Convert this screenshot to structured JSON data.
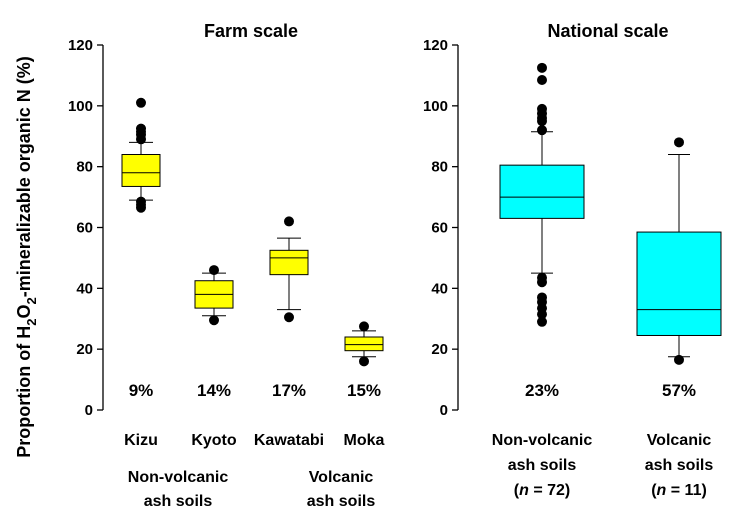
{
  "ylabel_prefix": "Proportion of H",
  "ylabel_sub1": "2",
  "ylabel_mid": "O",
  "ylabel_sub2": "2",
  "ylabel_suffix": "-mineralizable organic N (%)",
  "colors": {
    "farm_box": "#ffff00",
    "national_box": "#00ffff",
    "line": "#000000"
  },
  "chart_data": [
    {
      "type": "box",
      "title": "Farm scale",
      "ylim": [
        0,
        120
      ],
      "yticks": [
        0,
        20,
        40,
        60,
        80,
        100,
        120
      ],
      "categories": [
        "Kizu",
        "Kyoto",
        "Kawatabi",
        "Moka"
      ],
      "group_labels": [
        {
          "line1": "Non-volcanic",
          "line2": "ash soils"
        },
        {
          "line1": "Volcanic",
          "line2": "ash soils"
        }
      ],
      "series": [
        {
          "category": "Kizu",
          "whisker_low": 69,
          "q1": 73.5,
          "median": 78,
          "q3": 84,
          "whisker_high": 88,
          "outliers": [
            66.5,
            67.5,
            68.5,
            89,
            90.5,
            91.5,
            92.5,
            101
          ],
          "percent_label": "9%"
        },
        {
          "category": "Kyoto",
          "whisker_low": 31,
          "q1": 33.5,
          "median": 38,
          "q3": 42.5,
          "whisker_high": 45,
          "outliers": [
            29.5,
            46
          ],
          "percent_label": "14%"
        },
        {
          "category": "Kawatabi",
          "whisker_low": 33,
          "q1": 44.5,
          "median": 50,
          "q3": 52.5,
          "whisker_high": 56.5,
          "outliers": [
            30.5,
            62
          ],
          "percent_label": "17%"
        },
        {
          "category": "Moka",
          "whisker_low": 17.5,
          "q1": 19.5,
          "median": 21.5,
          "q3": 24,
          "whisker_high": 26,
          "outliers": [
            16,
            27.5
          ],
          "percent_label": "15%"
        }
      ]
    },
    {
      "type": "box",
      "title": "National scale",
      "ylim": [
        0,
        120
      ],
      "yticks": [
        0,
        20,
        40,
        60,
        80,
        100,
        120
      ],
      "categories": [
        {
          "line1": "Non-volcanic",
          "line2": "ash soils",
          "n_prefix": "(",
          "n_var": "n",
          "n_suffix": " = 72)"
        },
        {
          "line1": "Volcanic",
          "line2": "ash soils",
          "n_prefix": "(",
          "n_var": "n",
          "n_suffix": " = 11)"
        }
      ],
      "series": [
        {
          "whisker_low": 45,
          "q1": 63,
          "median": 70,
          "q3": 80.5,
          "whisker_high": 91.5,
          "outliers": [
            29,
            31.5,
            33.5,
            35.5,
            37,
            42,
            43.5,
            92,
            95,
            96,
            97.5,
            99,
            108.5,
            112.5
          ],
          "percent_label": "23%"
        },
        {
          "whisker_low": 17.5,
          "q1": 24.5,
          "median": 33,
          "q3": 58.5,
          "whisker_high": 84,
          "outliers": [
            16.5,
            88
          ],
          "percent_label": "57%"
        }
      ]
    }
  ]
}
